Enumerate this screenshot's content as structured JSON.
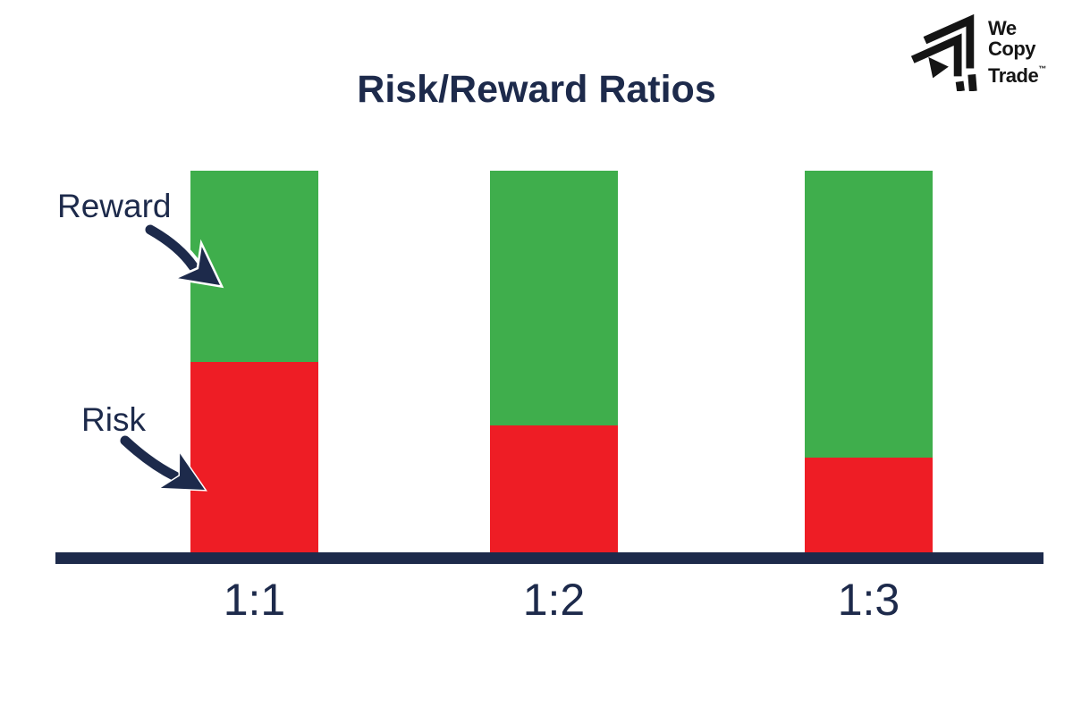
{
  "header": {
    "title": "Risk/Reward Ratios"
  },
  "logo": {
    "line1": "We",
    "line2": "Copy",
    "line3": "Trade",
    "trademark": "™"
  },
  "annotations": {
    "reward": "Reward",
    "risk": "Risk"
  },
  "colors": {
    "navy": "#1D2A4B",
    "green": "#3FAE4C",
    "red": "#EE1D25",
    "logo_black": "#151515",
    "background": "#FFFFFF"
  },
  "chart_data": {
    "type": "bar",
    "subtype": "stacked-normalized",
    "title": "Risk/Reward Ratios",
    "categories": [
      "1:1",
      "1:2",
      "1:3"
    ],
    "series": [
      {
        "name": "Risk",
        "color": "#EE1D25",
        "values": [
          1,
          1,
          1
        ]
      },
      {
        "name": "Reward",
        "color": "#3FAE4C",
        "values": [
          1,
          2,
          3
        ]
      }
    ],
    "risk_fraction_of_bar": [
      0.5,
      0.3333,
      0.25
    ],
    "bar_total_height": "equal for all categories (normalized)",
    "xlabel": "",
    "ylabel": "",
    "grid": false,
    "axis": "single bottom baseline, navy",
    "legend": "arrow annotations: Reward → green segment, Risk → red segment"
  }
}
